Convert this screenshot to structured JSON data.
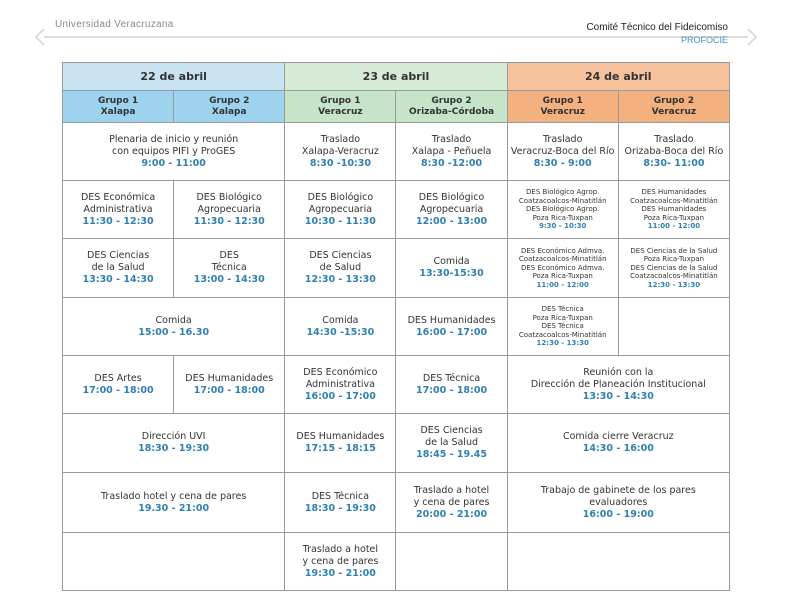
{
  "header": {
    "university": "Universidad Veracruzana",
    "committee": "Comité Técnico del Fideicomiso",
    "program": "PROFOCIE"
  },
  "table": {
    "days": [
      "22 de abril",
      "23 de abril",
      "24 de abril"
    ],
    "groups": [
      {
        "name": "Grupo 1",
        "place": "Xalapa"
      },
      {
        "name": "Grupo 2",
        "place": "Xalapa"
      },
      {
        "name": "Grupo 1",
        "place": "Veracruz"
      },
      {
        "name": "Grupo 2",
        "place": "Orizaba-Córdoba"
      },
      {
        "name": "Grupo 1",
        "place": "Veracruz"
      },
      {
        "name": "Grupo 2",
        "place": "Veracruz"
      }
    ],
    "rows": [
      [
        {
          "text": [
            "Plenaria de inicio y reunión",
            "con equipos PIFI y ProGES"
          ],
          "time": "9:00 - 11:00"
        },
        {
          "text": [
            "Traslado",
            "Xalapa-Veracruz"
          ],
          "time": "8:30 -10:30"
        },
        {
          "text": [
            "Traslado",
            "Xalapa - Peñuela"
          ],
          "time": "8:30 -12:00"
        },
        {
          "text": [
            "Traslado",
            "Veracruz-Boca del Río"
          ],
          "time": "8:30 - 9:00"
        },
        {
          "text": [
            "Traslado",
            "Orizaba-Boca del Río"
          ],
          "time": "8:30- 11:00"
        }
      ],
      [
        {
          "text": [
            "DES Económica",
            "Administrativa"
          ],
          "time": "11:30 - 12:30"
        },
        {
          "text": [
            "DES Biológico",
            "Agropecuaria"
          ],
          "time": "11:30 - 12:30"
        },
        {
          "text": [
            "DES Biológico",
            "Agropecuaria"
          ],
          "time": "10:30 - 11:30"
        },
        {
          "text": [
            "DES Biológico",
            "Agropecuaria"
          ],
          "time": "12:00 - 13:00"
        },
        {
          "text": [
            "DES Biológico Agrop.",
            "Coatzacoalcos-Minatitlán",
            "DES Biológico Agrop.",
            "Poza Rica-Tuxpan"
          ],
          "time": "9:30 - 10:30"
        },
        {
          "text": [
            "DES Humanidades",
            "Coatzacoalcos-Minatitlán",
            "DES Humanidades",
            "Poza Rica-Tuxpan"
          ],
          "time": "11:00 - 12:00"
        }
      ],
      [
        {
          "text": [
            "DES Ciencias",
            "de la Salud"
          ],
          "time": "13:30 - 14:30"
        },
        {
          "text": [
            "DES",
            "Técnica"
          ],
          "time": "13:00 - 14:30"
        },
        {
          "text": [
            "DES Ciencias",
            "de Salud"
          ],
          "time": "12:30 - 13:30"
        },
        {
          "text": [
            "Comida"
          ],
          "time": "13:30-15:30"
        },
        {
          "text": [
            "DES Económico Admva.",
            "Coatzacoalcos-Minatitlán",
            "DES Económico Admva.",
            "Poza Rica-Tuxpan"
          ],
          "time": "11:00 - 12:00"
        },
        {
          "text": [
            "DES Ciencias de la Salud",
            "Poza Rica-Tuxpan",
            "DES Ciencias de la Salud",
            "Coatzacoalcos-Minatitlán"
          ],
          "time": "12:30 - 13:30"
        }
      ],
      [
        {
          "text": [
            "Comida"
          ],
          "time": "15:00 - 16.30"
        },
        {
          "text": [
            "Comida"
          ],
          "time": "14:30 -15:30"
        },
        {
          "text": [
            "DES Humanidades"
          ],
          "time": "16:00 - 17:00"
        },
        {
          "text": [
            "DES Técnica",
            "Poza Rica-Tuxpan",
            "DES Técnica",
            "Coatzacoalcos-Minatitlán"
          ],
          "time": "12:30 - 13:30"
        }
      ],
      [
        {
          "text": [
            "DES Artes"
          ],
          "time": "17:00 - 18:00"
        },
        {
          "text": [
            "DES Humanidades"
          ],
          "time": "17:00 - 18:00"
        },
        {
          "text": [
            "DES Económico",
            "Administrativa"
          ],
          "time": "16:00 - 17:00"
        },
        {
          "text": [
            "DES Técnica"
          ],
          "time": "17:00 - 18:00"
        },
        {
          "text": [
            "Reunión con la",
            "Dirección de Planeación Institucional"
          ],
          "time": "13:30 - 14:30"
        }
      ],
      [
        {
          "text": [
            "Dirección UVI"
          ],
          "time": "18:30 - 19:30"
        },
        {
          "text": [
            "DES Humanidades"
          ],
          "time": "17:15 - 18:15"
        },
        {
          "text": [
            "DES Ciencias",
            "de la Salud"
          ],
          "time": "18:45 - 19.45"
        },
        {
          "text": [
            "Comida cierre Veracruz"
          ],
          "time": "14:30 - 16:00"
        }
      ],
      [
        {
          "text": [
            "Traslado hotel y cena de pares"
          ],
          "time": "19.30 - 21:00"
        },
        {
          "text": [
            "DES Técnica"
          ],
          "time": "18:30 - 19:30"
        },
        {
          "text": [
            "Traslado a hotel",
            "y cena de pares"
          ],
          "time": "20:00 - 21:00"
        },
        {
          "text": [
            "Trabajo de gabinete de los pares",
            "evaluadores"
          ],
          "time": "16:00 - 19:00"
        }
      ],
      [
        {
          "text": [
            "Traslado a hotel",
            "y cena de pares"
          ],
          "time": "19:30 - 21:00"
        }
      ]
    ]
  }
}
